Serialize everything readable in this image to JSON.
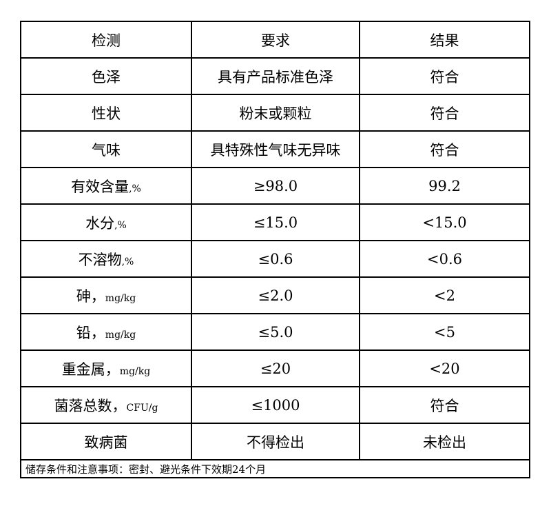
{
  "table": {
    "headers": [
      "检测",
      "要求",
      "结果"
    ],
    "rows": [
      {
        "item": "色泽",
        "unit": "",
        "requirement": "具有产品标准色泽",
        "result": "符合"
      },
      {
        "item": "性状",
        "unit": "",
        "requirement": "粉末或颗粒",
        "result": "符合"
      },
      {
        "item": "气味",
        "unit": "",
        "requirement": "具特殊性气味无异味",
        "result": "符合"
      },
      {
        "item": "有效含量",
        "unit": ",%",
        "requirement": "≥98.0",
        "result": "99.2"
      },
      {
        "item": "水分",
        "unit": ",%",
        "requirement": "≤15.0",
        "result": "<15.0"
      },
      {
        "item": "不溶物",
        "unit": ",%",
        "requirement": "≤0.6",
        "result": "<0.6"
      },
      {
        "item": "砷，",
        "unit": "mg/kg",
        "requirement": "≤2.0",
        "result": "<2"
      },
      {
        "item": "铅，",
        "unit": "mg/kg",
        "requirement": "≤5.0",
        "result": "<5"
      },
      {
        "item": "重金属，",
        "unit": "mg/kg",
        "requirement": "≤20",
        "result": "<20"
      },
      {
        "item": "菌落总数，",
        "unit": "CFU/g",
        "requirement": "≤1000",
        "result": "符合"
      },
      {
        "item": "致病菌",
        "unit": "",
        "requirement": "不得检出",
        "result": "未检出"
      }
    ],
    "footer": "储存条件和注意事项：密封、避光条件下效期24个月"
  }
}
